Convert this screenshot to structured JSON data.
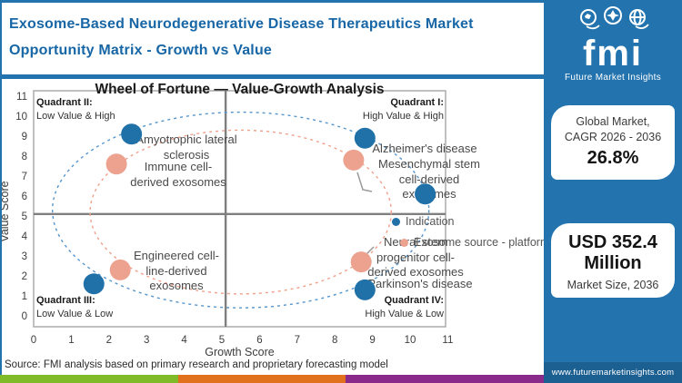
{
  "header": {
    "title_line1": "Exosome-Based Neurodegenerative Disease Therapeutics Market",
    "title_line2": "Opportunity Matrix - Growth vs Value"
  },
  "logo": {
    "abbr": "fmi",
    "name": "Future Market Insights"
  },
  "sidebar": {
    "cards": [
      {
        "line1": "Global Market,",
        "line2": "CAGR 2026 - 2036",
        "value": "26.8%"
      },
      {
        "value": "USD 352.4 Million",
        "label": "Market Size, 2036"
      }
    ],
    "website": "www.futuremarketinsights.com",
    "bg_color": "#2273AE"
  },
  "chart_data": {
    "type": "scatter",
    "title": "Wheel of Fortune — Value-Growth Analysis",
    "xlabel": "Growth Score",
    "ylabel": "Value Score",
    "xlim": [
      0,
      11
    ],
    "ylim": [
      0,
      11
    ],
    "x_ticks": [
      0,
      1,
      2,
      3,
      4,
      5,
      6,
      7,
      8,
      9,
      10,
      11
    ],
    "y_ticks": [
      0,
      1,
      2,
      3,
      4,
      5,
      6,
      7,
      8,
      9,
      10,
      11
    ],
    "grid": false,
    "quadrant_split": {
      "x": 5.1,
      "y": 5.1
    },
    "quadrants": [
      {
        "name": "Quadrant I:",
        "desc": "High Value & High",
        "position": "top-right"
      },
      {
        "name": "Quadrant II:",
        "desc": "Low Value & High",
        "position": "top-left"
      },
      {
        "name": "Quadrant III:",
        "desc": "Low Value & Low",
        "position": "bottom-left"
      },
      {
        "name": "Quadrant IV:",
        "desc": "High Value & Low",
        "position": "bottom-right"
      }
    ],
    "legend_position": "right-middle",
    "series": [
      {
        "name": "Indication",
        "color": "#2171A9",
        "ellipse": {
          "cx": 5.5,
          "cy": 5.3,
          "rx": 5.0,
          "ry": 4.9,
          "stroke": "#5595CC"
        },
        "points": [
          {
            "label": "Amyotrophic lateral\nsclerosis",
            "x": 2.6,
            "y": 9.1
          },
          {
            "label": "Alzheimer's disease",
            "x": 8.8,
            "y": 8.9
          },
          {
            "label": "",
            "x": 10.4,
            "y": 6.1
          },
          {
            "label": "Parkinson's disease",
            "x": 8.8,
            "y": 1.3
          },
          {
            "label": "",
            "x": 1.6,
            "y": 1.6
          }
        ]
      },
      {
        "name": "Exosome source - platform",
        "color": "#ECA28F",
        "ellipse": {
          "cx": 5.5,
          "cy": 5.2,
          "rx": 4.0,
          "ry": 4.1,
          "stroke": "#EFA18C"
        },
        "points": [
          {
            "label": "Immune cell-\nderived exosomes",
            "x": 2.2,
            "y": 7.6
          },
          {
            "label": "Mesenchymal stem\ncell-derived\nexosomes",
            "x": 8.5,
            "y": 7.8
          },
          {
            "label": "Neural stem\nprogenitor cell-\nderived exosomes",
            "x": 8.7,
            "y": 2.7
          },
          {
            "label": "Engineered cell-\nline-derived\nexosomes",
            "x": 2.3,
            "y": 2.3
          }
        ]
      }
    ]
  },
  "footer": {
    "source": "Source: FMI analysis based on primary research and proprietary forecasting model",
    "stripe_colors": [
      "#7FBA28",
      "#E2711D",
      "#8A2A8B"
    ]
  }
}
